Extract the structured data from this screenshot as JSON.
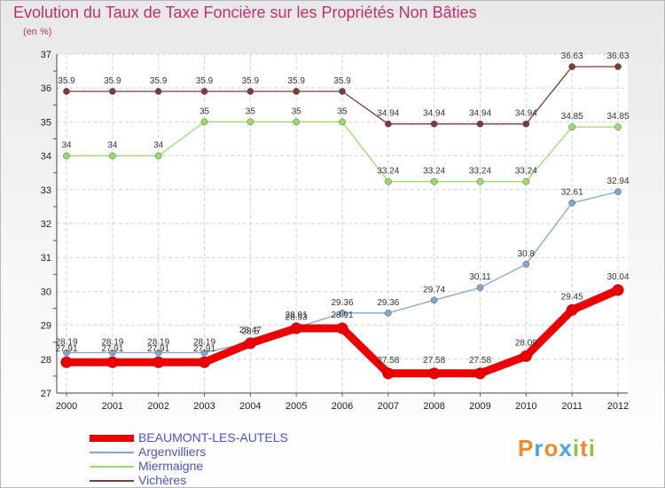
{
  "chart_data": {
    "type": "line",
    "title": "Evolution du Taux de Taxe Foncière sur les Propriétés Non Bâties",
    "ylabel": "(en %)",
    "xlabel": "",
    "ylim": [
      27,
      37
    ],
    "yticks": [
      27,
      28,
      29,
      30,
      31,
      32,
      33,
      34,
      35,
      36,
      37
    ],
    "categories": [
      "2000",
      "2001",
      "2002",
      "2003",
      "2004",
      "2005",
      "2006",
      "2007",
      "2008",
      "2009",
      "2010",
      "2011",
      "2012"
    ],
    "series": [
      {
        "name": "BEAUMONT-LES-AUTELS",
        "color": "#ee0000",
        "values": [
          27.91,
          27.91,
          27.91,
          27.91,
          28.47,
          28.91,
          28.91,
          27.58,
          27.58,
          27.58,
          28.09,
          29.45,
          30.04
        ],
        "labels": [
          "27.91",
          "27.91",
          "27.91",
          "27.91",
          "28.47",
          "28.91",
          "28.91",
          "27.58",
          "27.58",
          "27.58",
          "28.09",
          "29.45",
          "30.04"
        ]
      },
      {
        "name": "Argenvilliers",
        "color": "#7fa6d4",
        "values": [
          28.19,
          28.19,
          28.19,
          28.19,
          28.5,
          28.93,
          29.36,
          29.36,
          29.74,
          30.11,
          30.8,
          32.61,
          32.94
        ],
        "labels": [
          "28.19",
          "28.19",
          "28.19",
          "28.19",
          "28.5",
          "28.93",
          "29.36",
          "29.36",
          "29.74",
          "30.11",
          "30.8",
          "32.61",
          "32.94"
        ]
      },
      {
        "name": "Miermaigne",
        "color": "#99dd66",
        "values": [
          34,
          34,
          34,
          35,
          35,
          35,
          35,
          33.24,
          33.24,
          33.24,
          33.24,
          34.85,
          34.85
        ],
        "labels": [
          "34",
          "34",
          "34",
          "35",
          "35",
          "35",
          "35",
          "33.24",
          "33.24",
          "33.24",
          "33.24",
          "34.85",
          "34.85"
        ]
      },
      {
        "name": "Vichères",
        "color": "#7a3b3b",
        "values": [
          35.9,
          35.9,
          35.9,
          35.9,
          35.9,
          35.9,
          35.9,
          34.94,
          34.94,
          34.94,
          34.94,
          36.63,
          36.63
        ],
        "labels": [
          "35.9",
          "35.9",
          "35.9",
          "35.9",
          "35.9",
          "35.9",
          "35.9",
          "34.94",
          "34.94",
          "34.94",
          "34.94",
          "36.63",
          "36.63"
        ]
      }
    ]
  },
  "logo": {
    "text": "Proxiti",
    "letters": [
      {
        "ch": "P",
        "color": "#f08a2c"
      },
      {
        "ch": "r",
        "color": "#4aa3df"
      },
      {
        "ch": "o",
        "color": "#f08a2c"
      },
      {
        "ch": "x",
        "color": "#4aa3df"
      },
      {
        "ch": "i",
        "color": "#8cc63f"
      },
      {
        "ch": "t",
        "color": "#f08a2c"
      },
      {
        "ch": "i",
        "color": "#8cc63f"
      }
    ]
  }
}
